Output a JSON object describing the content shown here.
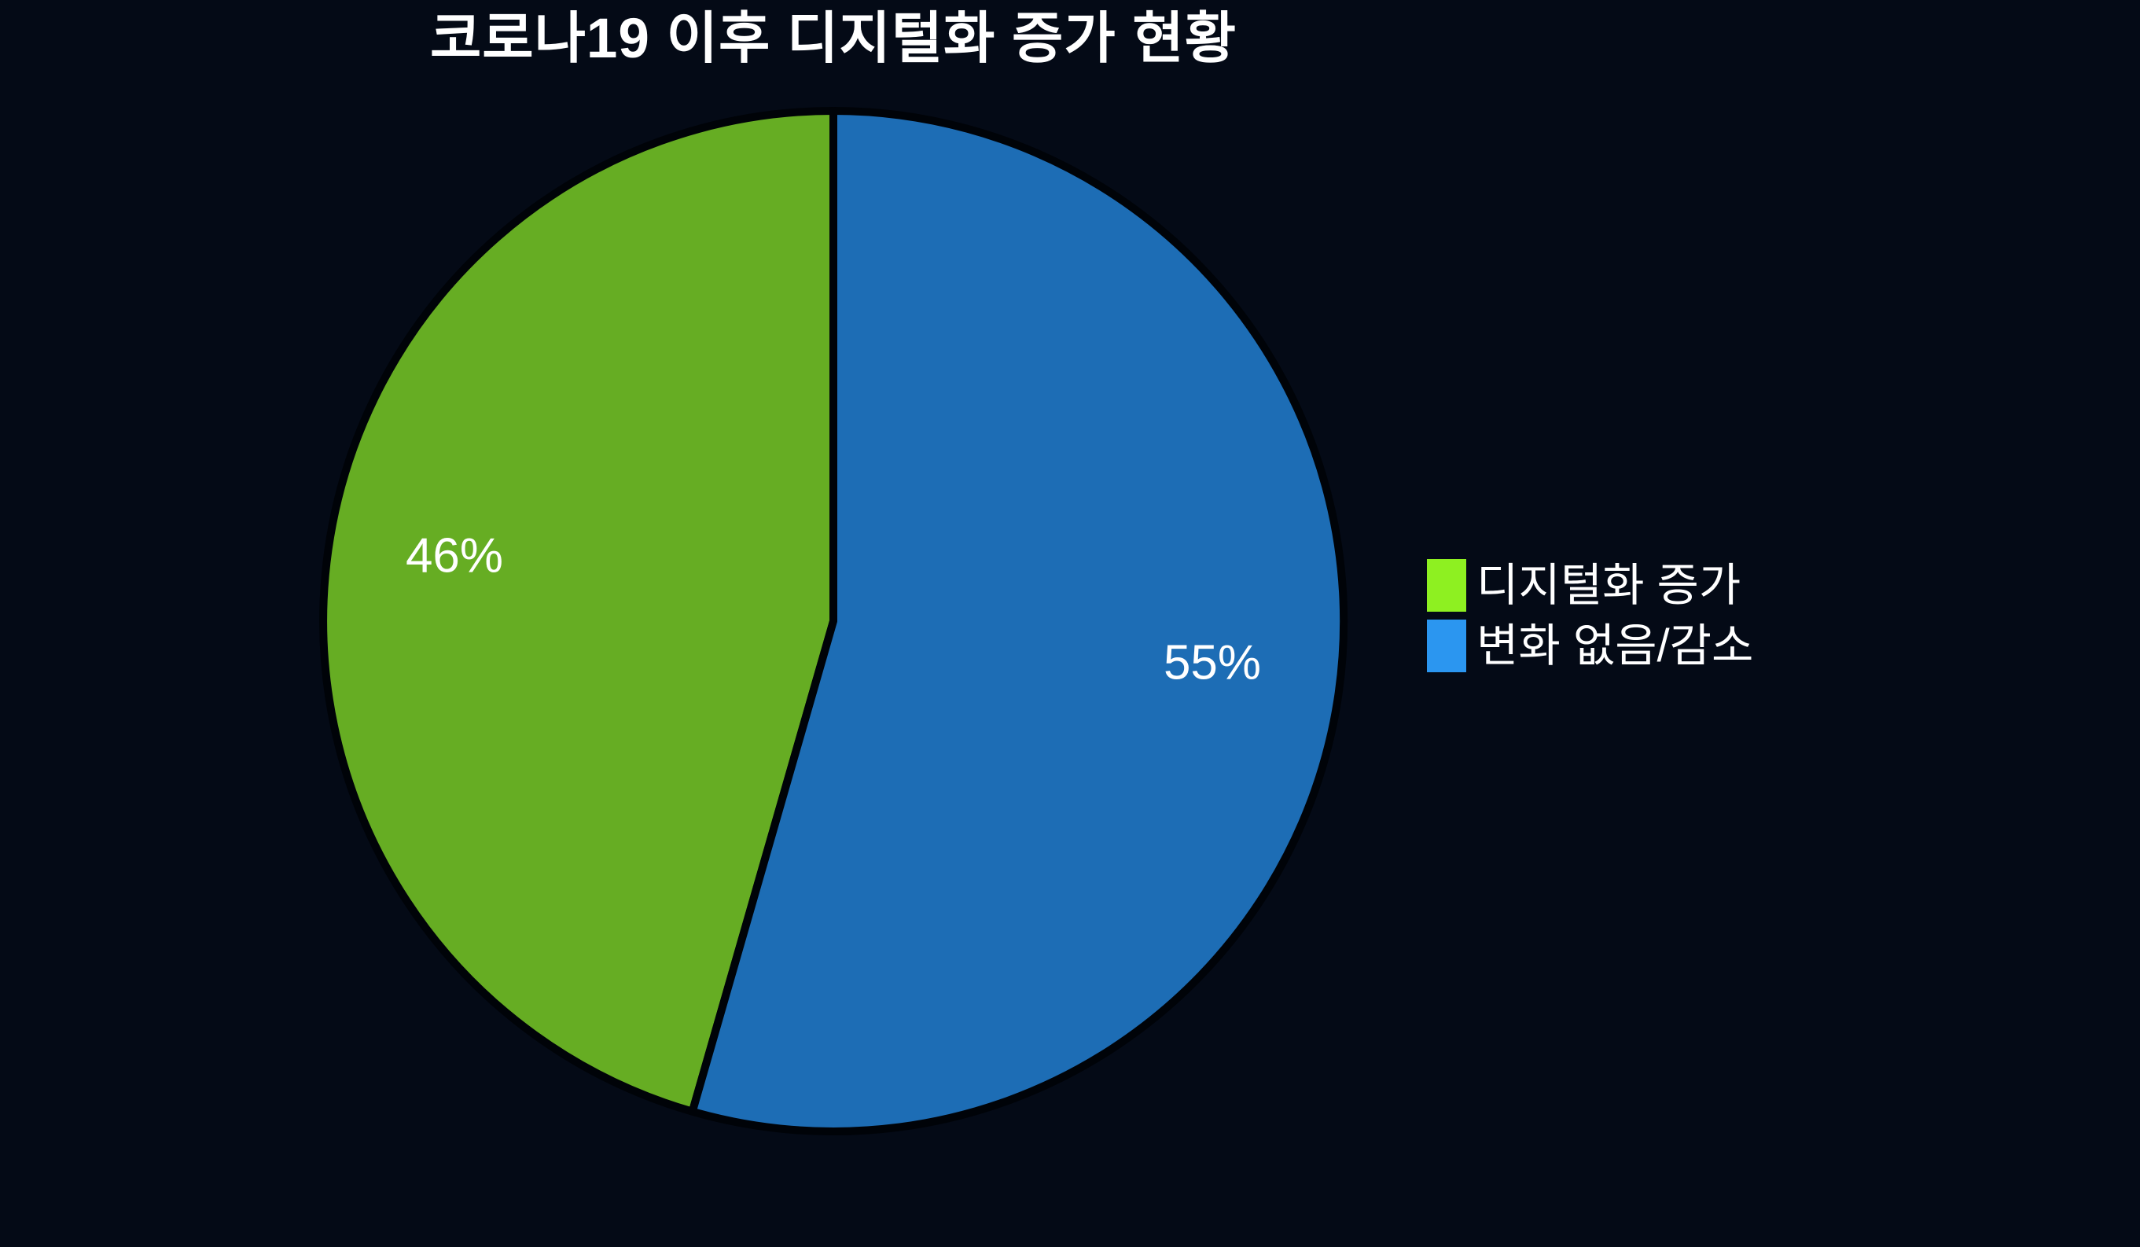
{
  "background_color": "#040a16",
  "title": "코로나19 이후 디지털화 증가 현황",
  "chart_data": {
    "type": "pie",
    "title": "코로나19 이후 디지털화 증가 현황",
    "slices": [
      {
        "label": "디지털화 증가",
        "value": 46,
        "display": "46%",
        "color": "#66ad23",
        "legend_color": "#8ef021"
      },
      {
        "label": "변화 없음/감소",
        "value": 55,
        "display": "55%",
        "color": "#1d6db5",
        "legend_color": "#2b96f0"
      }
    ],
    "start_angle_deg": 90,
    "direction": "counterclockwise",
    "label_radius_fraction": 0.75,
    "label_color": "#ffffff",
    "outline_color": "#000308",
    "legend_position": "right",
    "grid": false
  }
}
